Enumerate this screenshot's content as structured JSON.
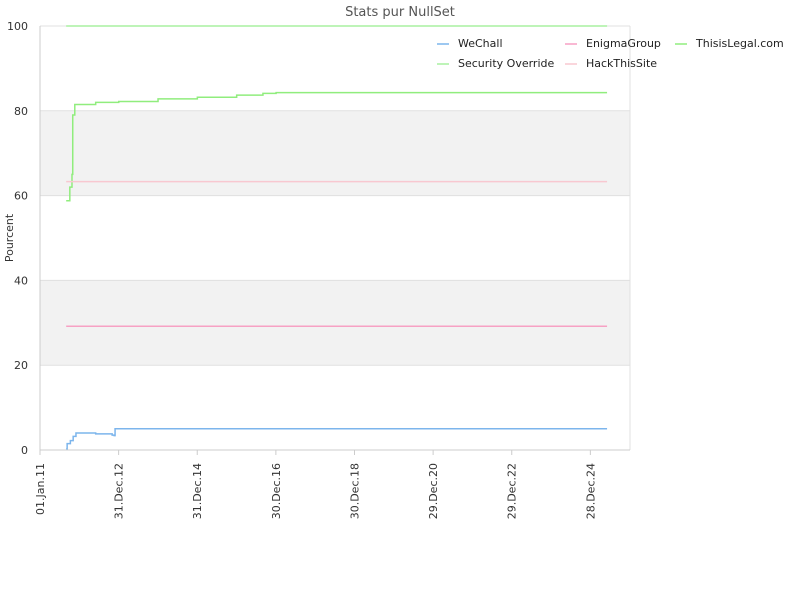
{
  "chart_data": {
    "type": "line",
    "title": "Stats pur NullSet",
    "xlabel": "",
    "ylabel": "Pourcent",
    "ylim": [
      0,
      100
    ],
    "xlim": [
      "2011-01-01",
      "2025-12-31"
    ],
    "y_ticks": [
      "0",
      "20",
      "40",
      "60",
      "80",
      "100"
    ],
    "x_ticks": [
      {
        "date": "2011-01-01",
        "label": "01.Jan.11"
      },
      {
        "date": "2012-12-31",
        "label": "31.Dec.12"
      },
      {
        "date": "2014-12-31",
        "label": "31.Dec.14"
      },
      {
        "date": "2016-12-30",
        "label": "30.Dec.16"
      },
      {
        "date": "2018-12-30",
        "label": "30.Dec.18"
      },
      {
        "date": "2020-12-29",
        "label": "29.Dec.20"
      },
      {
        "date": "2022-12-29",
        "label": "29.Dec.22"
      },
      {
        "date": "2024-12-28",
        "label": "28.Dec.24"
      }
    ],
    "grid": true,
    "bands": [
      [
        20,
        40
      ],
      [
        60,
        80
      ]
    ],
    "legend_position": "top-right",
    "series": [
      {
        "name": "WeChall",
        "color": "#7cb5ec",
        "points": [
          [
            "2011-09-01",
            0.3
          ],
          [
            "2011-09-10",
            1.5
          ],
          [
            "2011-10-10",
            2.2
          ],
          [
            "2011-11-05",
            3.2
          ],
          [
            "2011-12-01",
            4.0
          ],
          [
            "2012-02-01",
            4.0
          ],
          [
            "2012-06-01",
            3.8
          ],
          [
            "2012-11-01",
            3.5
          ],
          [
            "2012-11-20",
            3.4
          ],
          [
            "2012-11-28",
            5.0
          ],
          [
            "2013-06-01",
            5.0
          ],
          [
            "2025-06-01",
            5.0
          ]
        ]
      },
      {
        "name": "EnigmaGroup",
        "color": "#f7a1c4",
        "points": [
          [
            "2011-09-01",
            29.2
          ],
          [
            "2025-06-01",
            29.2
          ]
        ]
      },
      {
        "name": "ThisisLegal.com",
        "color": "#90ed7d",
        "points": [
          [
            "2011-09-01",
            58.8
          ],
          [
            "2011-09-25",
            58.8
          ],
          [
            "2011-10-05",
            62.0
          ],
          [
            "2011-10-25",
            65.0
          ],
          [
            "2011-11-01",
            79.0
          ],
          [
            "2011-11-20",
            81.5
          ],
          [
            "2012-06-01",
            82.0
          ],
          [
            "2013-01-01",
            82.2
          ],
          [
            "2014-01-01",
            82.8
          ],
          [
            "2015-01-01",
            83.2
          ],
          [
            "2016-01-01",
            83.7
          ],
          [
            "2016-09-01",
            84.1
          ],
          [
            "2017-01-01",
            84.3
          ],
          [
            "2025-06-01",
            84.3
          ]
        ]
      },
      {
        "name": "Security Override",
        "color": "#a8f0a0",
        "points": [
          [
            "2011-09-01",
            100
          ],
          [
            "2025-06-01",
            100
          ]
        ]
      },
      {
        "name": "HackThisSite",
        "color": "#f8c8d0",
        "points": [
          [
            "2011-09-01",
            63.3
          ],
          [
            "2025-06-01",
            63.3
          ]
        ]
      }
    ]
  }
}
